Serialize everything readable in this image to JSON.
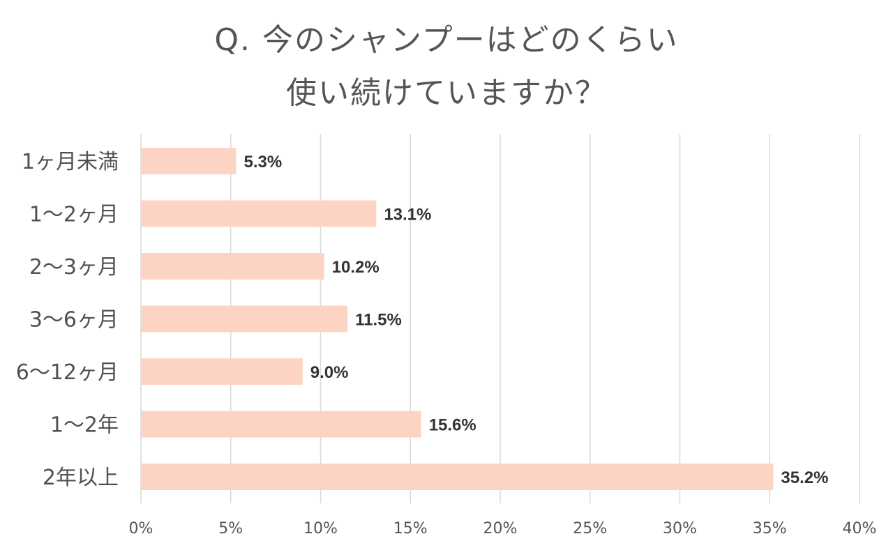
{
  "chart_data": {
    "type": "bar",
    "orientation": "horizontal",
    "title_lines": [
      "Q. 今のシャンプーはどのくらい",
      "使い続けていますか？"
    ],
    "categories": [
      "1ヶ月未満",
      "1〜2ヶ月",
      "2〜3ヶ月",
      "3〜6ヶ月",
      "6〜12ヶ月",
      "1〜2年",
      "2年以上"
    ],
    "values": [
      5.3,
      13.1,
      10.2,
      11.5,
      9.0,
      15.6,
      35.2
    ],
    "value_labels": [
      "5.3%",
      "13.1%",
      "10.2%",
      "11.5%",
      "9.0%",
      "15.6%",
      "35.2%"
    ],
    "x_ticks": [
      0,
      5,
      10,
      15,
      20,
      25,
      30,
      35,
      40
    ],
    "x_tick_labels": [
      "0%",
      "5%",
      "10%",
      "15%",
      "20%",
      "25%",
      "30%",
      "35%",
      "40%"
    ],
    "xlim": [
      0,
      40
    ],
    "grid": true,
    "bar_color": "#fdd3c4",
    "grid_color": "#d9d9d9"
  }
}
